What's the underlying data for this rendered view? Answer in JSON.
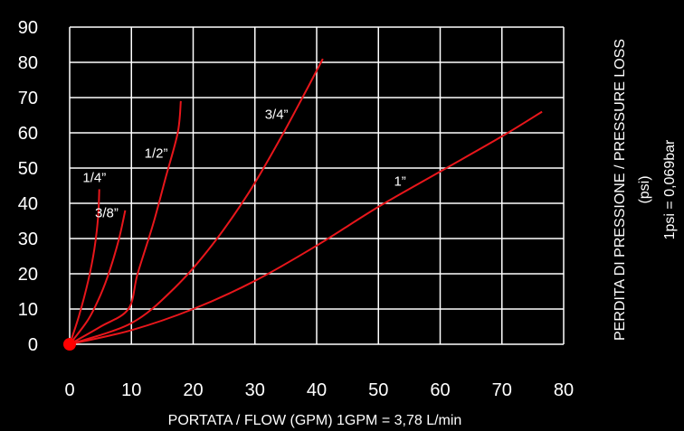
{
  "chart_data": {
    "type": "line",
    "xlabel": "PORTATA / FLOW (GPM)  1GPM = 3,78 L/min",
    "ylabel": "PERDITA DI PRESSIONE / PRESSURE LOSS",
    "ylabel_unit": "(psi)",
    "ylabel_note": "1psi = 0,069bar",
    "xlim": [
      0,
      80
    ],
    "ylim": [
      0,
      90
    ],
    "xticks": [
      "0",
      "10",
      "20",
      "30",
      "40",
      "50",
      "60",
      "70",
      "80"
    ],
    "yticks": [
      "0",
      "10",
      "20",
      "30",
      "40",
      "50",
      "60",
      "70",
      "80",
      "90"
    ],
    "grid": true,
    "legend": "none",
    "line_color": "#e8161b",
    "origin_marker_color": "#ff0000",
    "series": [
      {
        "name": "1/4”",
        "x": [
          0,
          1.5,
          3,
          4,
          4.6,
          4.8
        ],
        "y": [
          0,
          8,
          18,
          27,
          36,
          44
        ]
      },
      {
        "name": "3/8”",
        "x": [
          0,
          3,
          5,
          6.5,
          8,
          9
        ],
        "y": [
          0,
          7,
          14,
          21,
          30,
          38
        ]
      },
      {
        "name": "1/2”",
        "x": [
          0,
          5,
          9.5,
          11,
          13.5,
          15.5,
          17.5,
          18
        ],
        "y": [
          0,
          5,
          10,
          20,
          34,
          47,
          60,
          69
        ]
      },
      {
        "name": "3/4”",
        "x": [
          0,
          10,
          17,
          23,
          29,
          34,
          38,
          41
        ],
        "y": [
          0,
          6,
          16,
          28,
          43,
          58,
          71,
          81
        ]
      },
      {
        "name": "1”",
        "x": [
          0,
          10,
          20,
          30,
          40,
          50,
          60,
          70,
          76.5
        ],
        "y": [
          0,
          4,
          10,
          18,
          28,
          39,
          49,
          59,
          66
        ]
      }
    ],
    "annotations": [
      {
        "text": "1/4”",
        "x": 4,
        "y": 46
      },
      {
        "text": "3/8”",
        "x": 6,
        "y": 36
      },
      {
        "text": "1/2”",
        "x": 14,
        "y": 53
      },
      {
        "text": "3/4”",
        "x": 33.5,
        "y": 64
      },
      {
        "text": "1”",
        "x": 53.5,
        "y": 45
      }
    ]
  }
}
